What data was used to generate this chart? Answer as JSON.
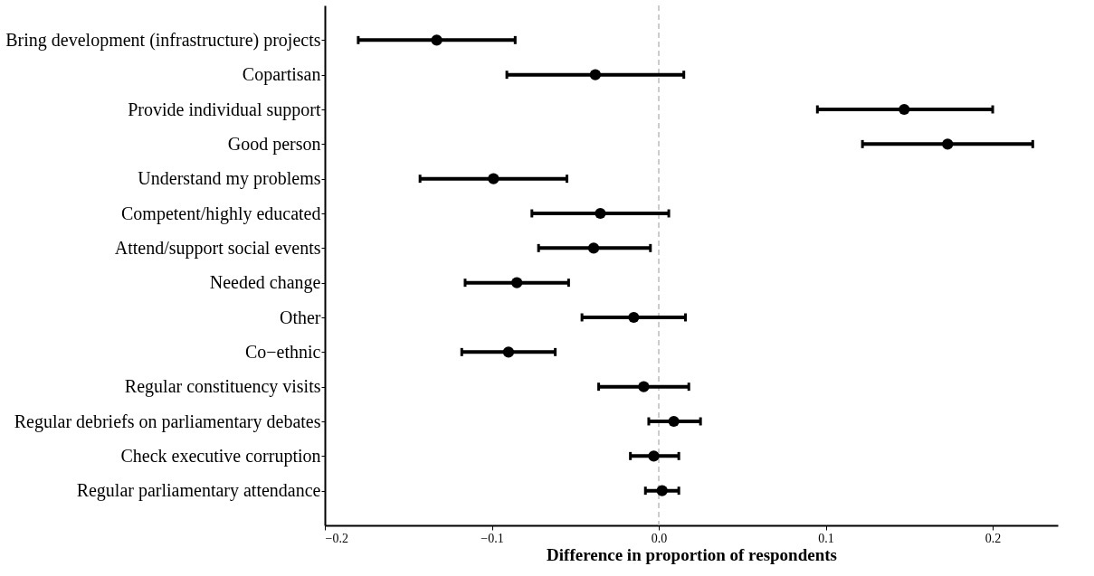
{
  "chart_data": {
    "type": "scatter",
    "orientation": "horizontal",
    "xlabel": "Difference in proportion of respondents",
    "categories": [
      "Bring development (infrastructure) projects",
      "Copartisan",
      "Provide individual support",
      "Good person",
      "Understand my problems",
      "Competent/highly educated",
      "Attend/support social events",
      "Needed change",
      "Other",
      "Co−ethnic",
      "Regular constituency visits",
      "Regular debriefs on parliamentary debates",
      "Check executive corruption",
      "Regular parliamentary attendance"
    ],
    "series": [
      {
        "color": "#000000",
        "values": [
          -0.133,
          -0.038,
          0.147,
          0.173,
          -0.099,
          -0.035,
          -0.039,
          -0.085,
          -0.015,
          -0.09,
          -0.009,
          0.009,
          -0.003,
          0.002
        ],
        "errors": [
          [
            -0.18,
            -0.086
          ],
          [
            -0.091,
            0.015
          ],
          [
            0.095,
            0.2
          ],
          [
            0.122,
            0.224
          ],
          [
            -0.143,
            -0.055
          ],
          [
            -0.076,
            0.006
          ],
          [
            -0.072,
            -0.005
          ],
          [
            -0.116,
            -0.054
          ],
          [
            -0.046,
            0.016
          ],
          [
            -0.118,
            -0.062
          ],
          [
            -0.036,
            0.018
          ],
          [
            -0.006,
            0.025
          ],
          [
            -0.017,
            0.012
          ],
          [
            -0.008,
            0.012
          ]
        ]
      }
    ],
    "xlim": [
      -0.2,
      0.239
    ],
    "xticks": [
      {
        "value": -0.2,
        "label": "−0.2"
      },
      {
        "value": -0.1,
        "label": "−0.1"
      },
      {
        "value": 0,
        "label": "0.0"
      },
      {
        "value": 0.1,
        "label": "0.1"
      },
      {
        "value": 0.2,
        "label": "0.2"
      }
    ],
    "ref_lines": [
      {
        "axis": "x",
        "value": 0,
        "label": null,
        "color": "#bdbdbd",
        "line_style": "dashed"
      }
    ],
    "marker": "circle",
    "grid": false
  }
}
